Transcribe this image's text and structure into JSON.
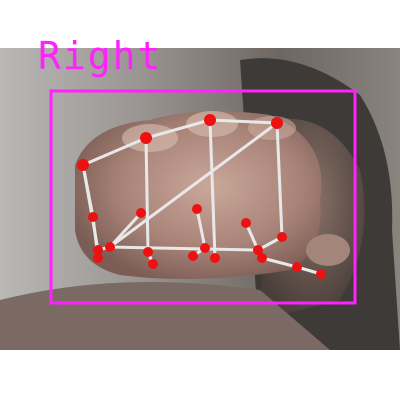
{
  "detection": {
    "label": "Right",
    "box_color": "#ff22ff",
    "landmark_color": "#ee1111",
    "connection_color": "#e8e8e8"
  }
}
